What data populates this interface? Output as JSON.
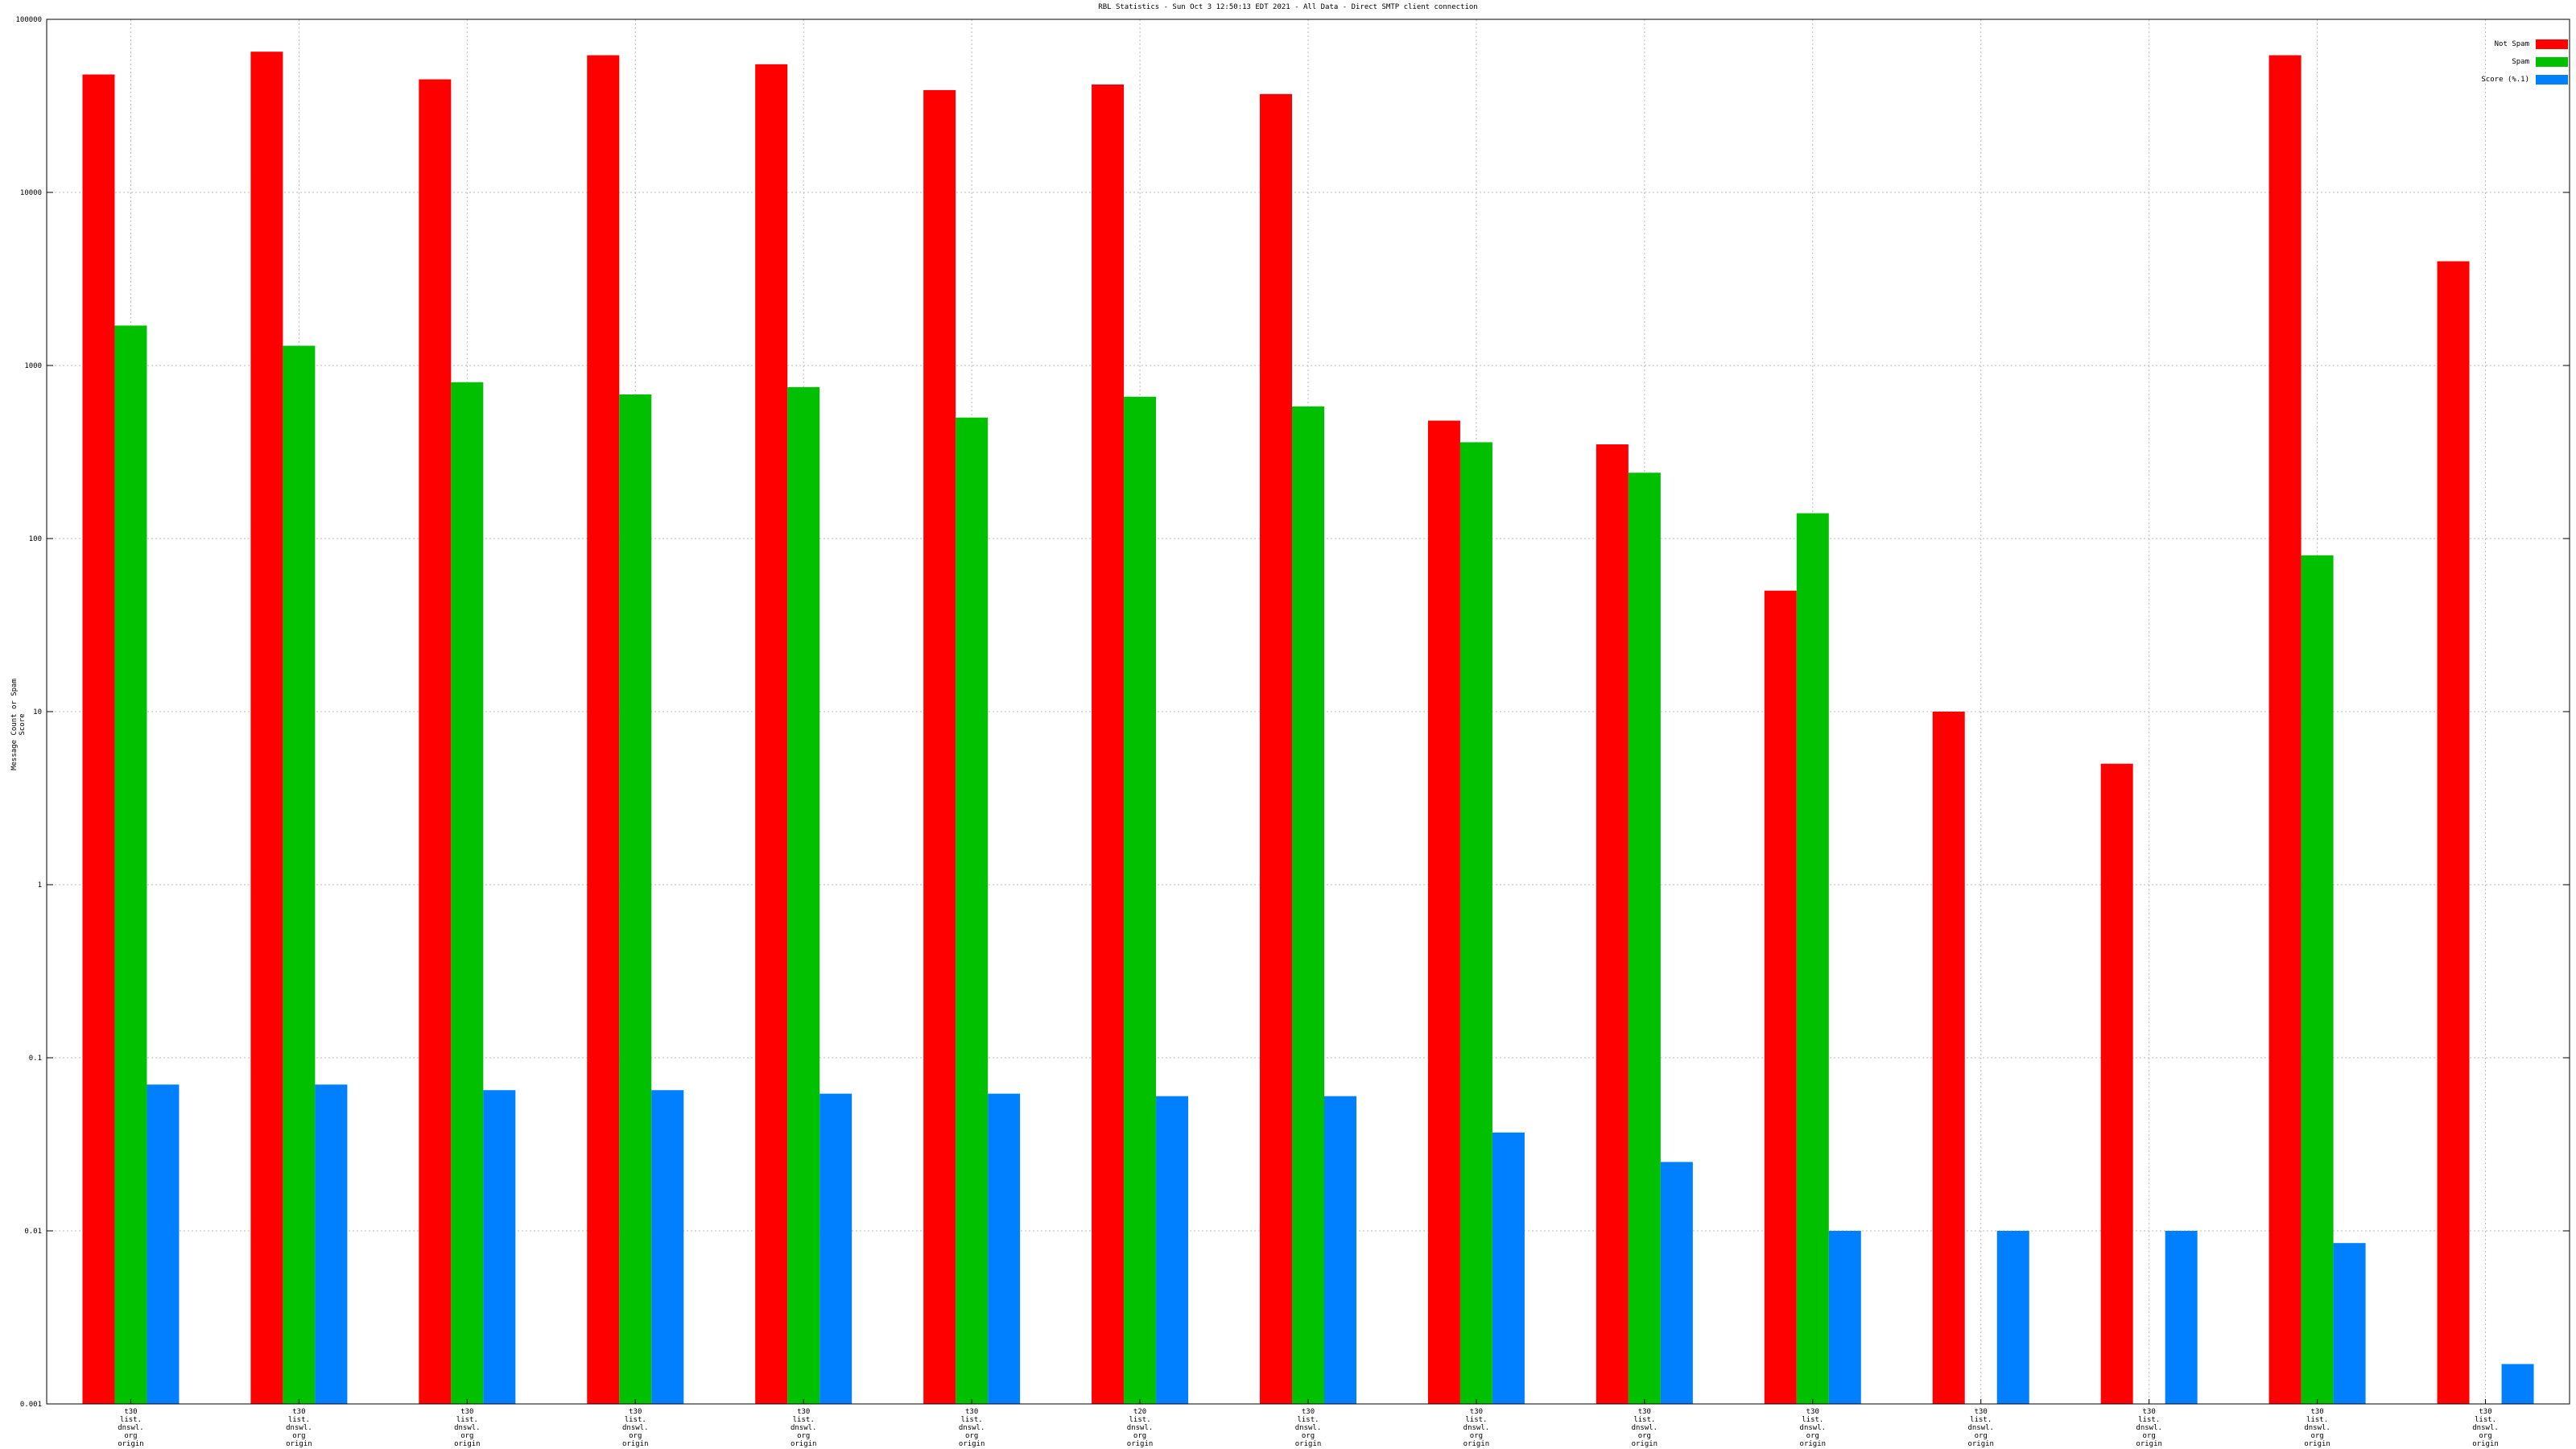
{
  "chart_data": {
    "type": "bar",
    "title": "RBL Statistics - Sun Oct  3 12:50:13 EDT 2021 - All Data - Direct SMTP client connection",
    "xlabel": "",
    "ylabel": "Message Count or Spam Score",
    "yscale": "log",
    "ylim": [
      0.001,
      100000
    ],
    "ytick_labels": [
      "0.001",
      "0.01",
      "0.1",
      "1",
      "10",
      "100",
      "1000",
      "10000",
      "100000"
    ],
    "grid": true,
    "legend_position": "top-right",
    "colors": {
      "not_spam": "#ff0000",
      "spam": "#00c000",
      "score": "#0080ff"
    },
    "categories": [
      [
        "t30",
        "list.",
        "dnswl.",
        "org",
        "origin"
      ],
      [
        "t30",
        "list.",
        "dnswl.",
        "org",
        "origin"
      ],
      [
        "t30",
        "list.",
        "dnswl.",
        "org",
        "origin"
      ],
      [
        "t30",
        "list.",
        "dnswl.",
        "org",
        "origin"
      ],
      [
        "t30",
        "list.",
        "dnswl.",
        "org",
        "origin"
      ],
      [
        "t30",
        "list.",
        "dnswl.",
        "org",
        "origin"
      ],
      [
        "t20",
        "list.",
        "dnswl.",
        "org",
        "origin"
      ],
      [
        "t30",
        "list.",
        "dnswl.",
        "org",
        "origin"
      ],
      [
        "t30",
        "list.",
        "dnswl.",
        "org",
        "origin"
      ],
      [
        "t30",
        "list.",
        "dnswl.",
        "org",
        "origin"
      ],
      [
        "t30",
        "list.",
        "dnswl.",
        "org",
        "origin"
      ],
      [
        "t30",
        "list.",
        "dnswl.",
        "org",
        "origin"
      ],
      [
        "t30",
        "list.",
        "dnswl.",
        "org",
        "origin"
      ],
      [
        "t30",
        "list.",
        "dnswl.",
        "org",
        "origin"
      ],
      [
        "t30",
        "list.",
        "dnswl.",
        "org",
        "origin"
      ]
    ],
    "series": [
      {
        "name": "Not Spam",
        "values": [
          48000,
          65000,
          45000,
          62000,
          55000,
          39000,
          42000,
          37000,
          480,
          350,
          50,
          10,
          5,
          62000,
          4000
        ]
      },
      {
        "name": "Spam",
        "values": [
          1700,
          1300,
          800,
          680,
          750,
          500,
          660,
          580,
          360,
          240,
          140,
          0,
          0,
          80,
          0
        ]
      },
      {
        "name": "Score (%.1)",
        "values": [
          0.07,
          0.07,
          0.065,
          0.065,
          0.062,
          0.062,
          0.06,
          0.06,
          0.037,
          0.025,
          0.01,
          0.01,
          0.01,
          0.0085,
          0.0017
        ]
      }
    ]
  }
}
